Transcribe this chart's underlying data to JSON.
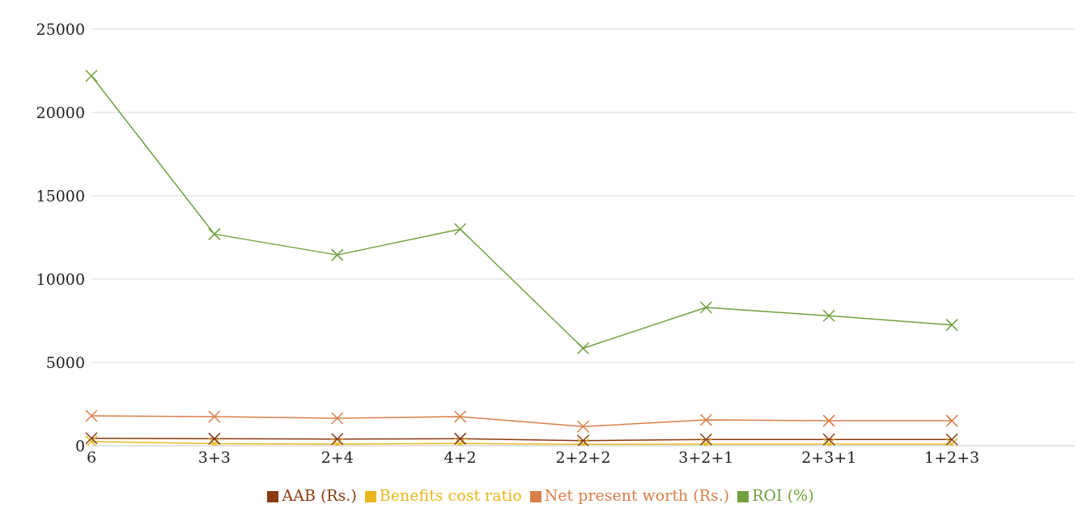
{
  "chart_data": {
    "type": "line",
    "categories": [
      "6",
      "3+3",
      "2+4",
      "4+2",
      "2+2+2",
      "3+2+1",
      "2+3+1",
      "1+2+3",
      null
    ],
    "series": [
      {
        "name": "Net present worth (Rs.)",
        "color": "#d9804a",
        "values": [
          1800,
          1750,
          1650,
          1750,
          1150,
          1550,
          1500,
          1500,
          null
        ]
      },
      {
        "name": "Benefits cost ratio",
        "color": "#e8b820",
        "values": [
          250,
          120,
          100,
          130,
          80,
          100,
          100,
          100,
          null
        ]
      },
      {
        "name": "ROI (%)",
        "color": "#70a040",
        "values": [
          22200,
          12700,
          11450,
          13000,
          5850,
          8300,
          7800,
          7250,
          null
        ]
      },
      {
        "name": "AAB (Rs.)",
        "color": "#8b3a12",
        "values": [
          450,
          420,
          400,
          420,
          300,
          380,
          380,
          380,
          null
        ]
      }
    ],
    "ylim": [
      0,
      25000
    ],
    "yticks": [
      0,
      5000,
      10000,
      15000,
      20000,
      25000
    ],
    "grid": "y",
    "legend": "bottom",
    "marker": "cross",
    "line_style": "solid"
  }
}
